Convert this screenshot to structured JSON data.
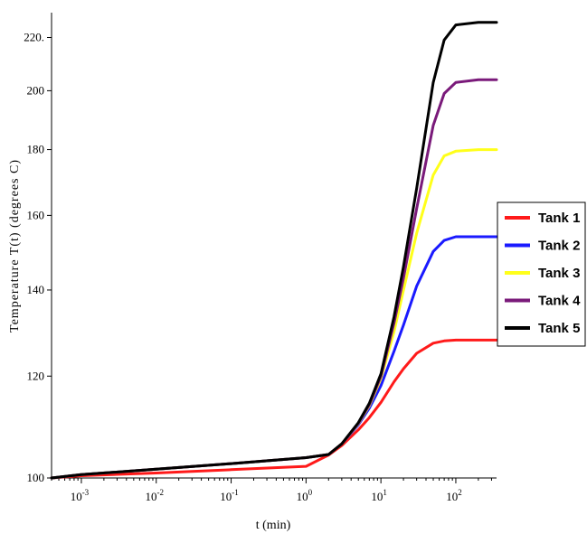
{
  "chart_data": {
    "type": "line",
    "title": "",
    "xlabel": "t (min)",
    "ylabel": "Temperature T(t) (degrees C)",
    "x_scale": "log",
    "y_scale": "log",
    "xlim": [
      0.0004,
      350
    ],
    "ylim": [
      100,
      230
    ],
    "x_ticks": [
      {
        "value": 0.001,
        "base": "10",
        "exp": "-3"
      },
      {
        "value": 0.01,
        "base": "10",
        "exp": "-2"
      },
      {
        "value": 0.1,
        "base": "10",
        "exp": "-1"
      },
      {
        "value": 1,
        "base": "10",
        "exp": "0"
      },
      {
        "value": 10,
        "base": "10",
        "exp": "1"
      },
      {
        "value": 100,
        "base": "10",
        "exp": "2"
      }
    ],
    "y_ticks": [
      {
        "value": 100,
        "label": "100"
      },
      {
        "value": 120,
        "label": "120"
      },
      {
        "value": 140,
        "label": "140"
      },
      {
        "value": 160,
        "label": "160"
      },
      {
        "value": 180,
        "label": "180"
      },
      {
        "value": 200,
        "label": "200"
      },
      {
        "value": 220,
        "label": "220."
      }
    ],
    "grid": false,
    "legend_position": "right",
    "series": [
      {
        "name": "Tank 1",
        "color": "#ff1a1a",
        "x": [
          0.0004,
          0.001,
          0.01,
          0.1,
          1,
          2,
          3,
          5,
          7,
          10,
          15,
          20,
          30,
          50,
          70,
          100,
          200,
          350
        ],
        "y": [
          100,
          100.4,
          100.9,
          101.5,
          102.1,
          104.2,
          106,
          109,
          111.4,
          114.5,
          118.8,
          121.6,
          125,
          127.3,
          127.8,
          128,
          128,
          128
        ]
      },
      {
        "name": "Tank 2",
        "color": "#1a1aff",
        "x": [
          0.0004,
          0.001,
          0.01,
          0.1,
          1,
          2,
          3,
          5,
          7,
          10,
          15,
          20,
          30,
          50,
          70,
          100,
          200,
          350
        ],
        "y": [
          100,
          100.6,
          101.6,
          102.6,
          103.7,
          104.3,
          106.3,
          110,
          113.3,
          118,
          125.5,
          131.5,
          141,
          150,
          153,
          154,
          154,
          154
        ]
      },
      {
        "name": "Tank 3",
        "color": "#ffff1a",
        "x": [
          0.0004,
          0.001,
          0.01,
          0.1,
          1,
          2,
          3,
          5,
          7,
          10,
          15,
          20,
          30,
          50,
          70,
          100,
          200,
          350
        ],
        "y": [
          100,
          100.6,
          101.6,
          102.6,
          103.7,
          104.3,
          106.3,
          110.2,
          113.8,
          119.5,
          130,
          140,
          155,
          172,
          178,
          179.5,
          180,
          180
        ]
      },
      {
        "name": "Tank 4",
        "color": "#7a1a7a",
        "x": [
          0.0004,
          0.001,
          0.01,
          0.1,
          1,
          2,
          3,
          5,
          7,
          10,
          15,
          20,
          30,
          50,
          70,
          100,
          200,
          350
        ],
        "y": [
          100,
          100.6,
          101.6,
          102.6,
          103.7,
          104.3,
          106.3,
          110.3,
          114,
          120,
          132,
          143,
          162,
          188,
          199,
          203,
          204,
          204
        ]
      },
      {
        "name": "Tank 5",
        "color": "#000000",
        "x": [
          0.0004,
          0.001,
          0.01,
          0.1,
          1,
          2,
          3,
          5,
          7,
          10,
          15,
          20,
          30,
          50,
          70,
          100,
          200,
          350
        ],
        "y": [
          100,
          100.6,
          101.6,
          102.6,
          103.7,
          104.3,
          106.3,
          110.4,
          114.3,
          120.5,
          133.5,
          146,
          168,
          203,
          219,
          225,
          226,
          226
        ]
      }
    ]
  }
}
